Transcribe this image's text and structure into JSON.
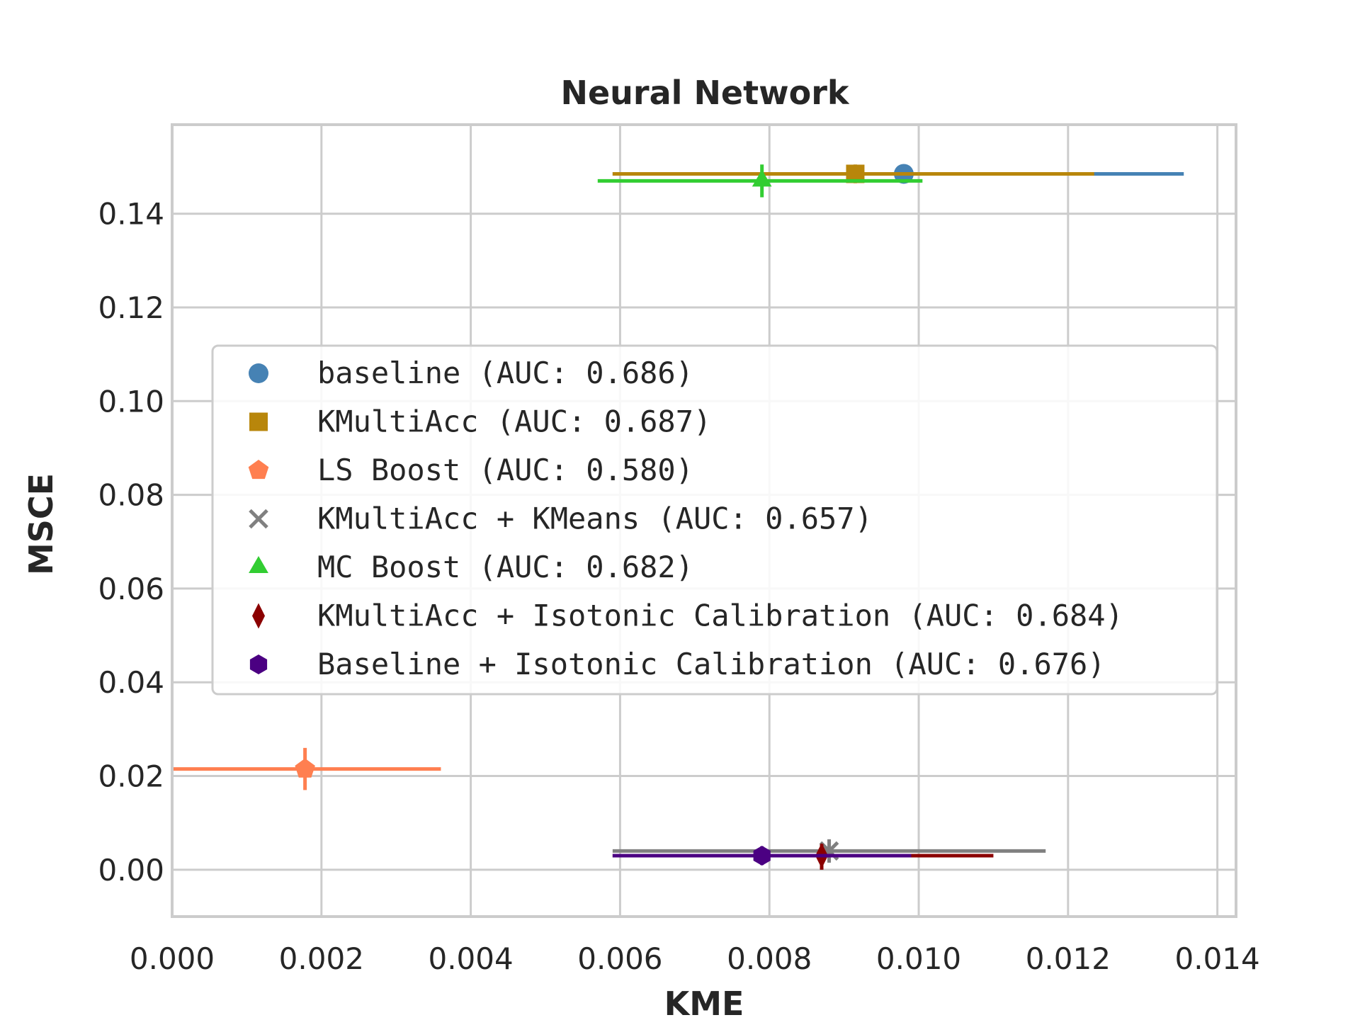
{
  "chart_data": {
    "type": "scatter",
    "title": "Neural Network",
    "xlabel": "KME",
    "ylabel": "MSCE",
    "xlim": [
      0.0,
      0.01425
    ],
    "ylim": [
      -0.01,
      0.159
    ],
    "xticks": [
      "0.000",
      "0.002",
      "0.004",
      "0.006",
      "0.008",
      "0.010",
      "0.012",
      "0.014"
    ],
    "xtick_values": [
      0.0,
      0.002,
      0.004,
      0.006,
      0.008,
      0.01,
      0.012,
      0.014
    ],
    "yticks": [
      "0.00",
      "0.02",
      "0.04",
      "0.06",
      "0.08",
      "0.10",
      "0.12",
      "0.14"
    ],
    "ytick_values": [
      0.0,
      0.02,
      0.04,
      0.06,
      0.08,
      0.1,
      0.12,
      0.14
    ],
    "grid": true,
    "legend_position": "center",
    "series": [
      {
        "name": "baseline (AUC: 0.686)",
        "marker": "circle",
        "color": "#4682b4",
        "x": 0.0098,
        "y": 0.1485,
        "xerr": [
          0.0059,
          0.01355
        ],
        "yerr": [
          0.1465,
          0.1505
        ]
      },
      {
        "name": "KMultiAcc (AUC: 0.687)",
        "marker": "square",
        "color": "#b8860b",
        "x": 0.00915,
        "y": 0.1485,
        "xerr": [
          0.0059,
          0.01235
        ],
        "yerr": [
          0.1465,
          0.1505
        ]
      },
      {
        "name": "LS Boost (AUC: 0.580)",
        "marker": "pentagon",
        "color": "#ff7f50",
        "x": 0.00178,
        "y": 0.0215,
        "xerr": [
          0.0,
          0.0036
        ],
        "yerr": [
          0.017,
          0.026
        ]
      },
      {
        "name": "KMultiAcc + KMeans (AUC: 0.657)",
        "marker": "x",
        "color": "#808080",
        "x": 0.0088,
        "y": 0.004,
        "xerr": [
          0.0059,
          0.0117
        ],
        "yerr": [
          0.0015,
          0.0065
        ]
      },
      {
        "name": "MC Boost (AUC: 0.682)",
        "marker": "triangle",
        "color": "#32cd32",
        "x": 0.0079,
        "y": 0.147,
        "xerr": [
          0.0057,
          0.01005
        ],
        "yerr": [
          0.1435,
          0.1505
        ]
      },
      {
        "name": "KMultiAcc + Isotonic Calibration (AUC: 0.684)",
        "marker": "diamond",
        "color": "#8b0000",
        "x": 0.0087,
        "y": 0.003,
        "xerr": [
          0.0059,
          0.011
        ],
        "yerr": [
          0.0,
          0.0055
        ]
      },
      {
        "name": "Baseline + Isotonic Calibration (AUC: 0.676)",
        "marker": "hexagon",
        "color": "#4b0082",
        "x": 0.0079,
        "y": 0.003,
        "xerr": [
          0.0059,
          0.0099
        ],
        "yerr": [
          0.001,
          0.005
        ]
      }
    ]
  }
}
